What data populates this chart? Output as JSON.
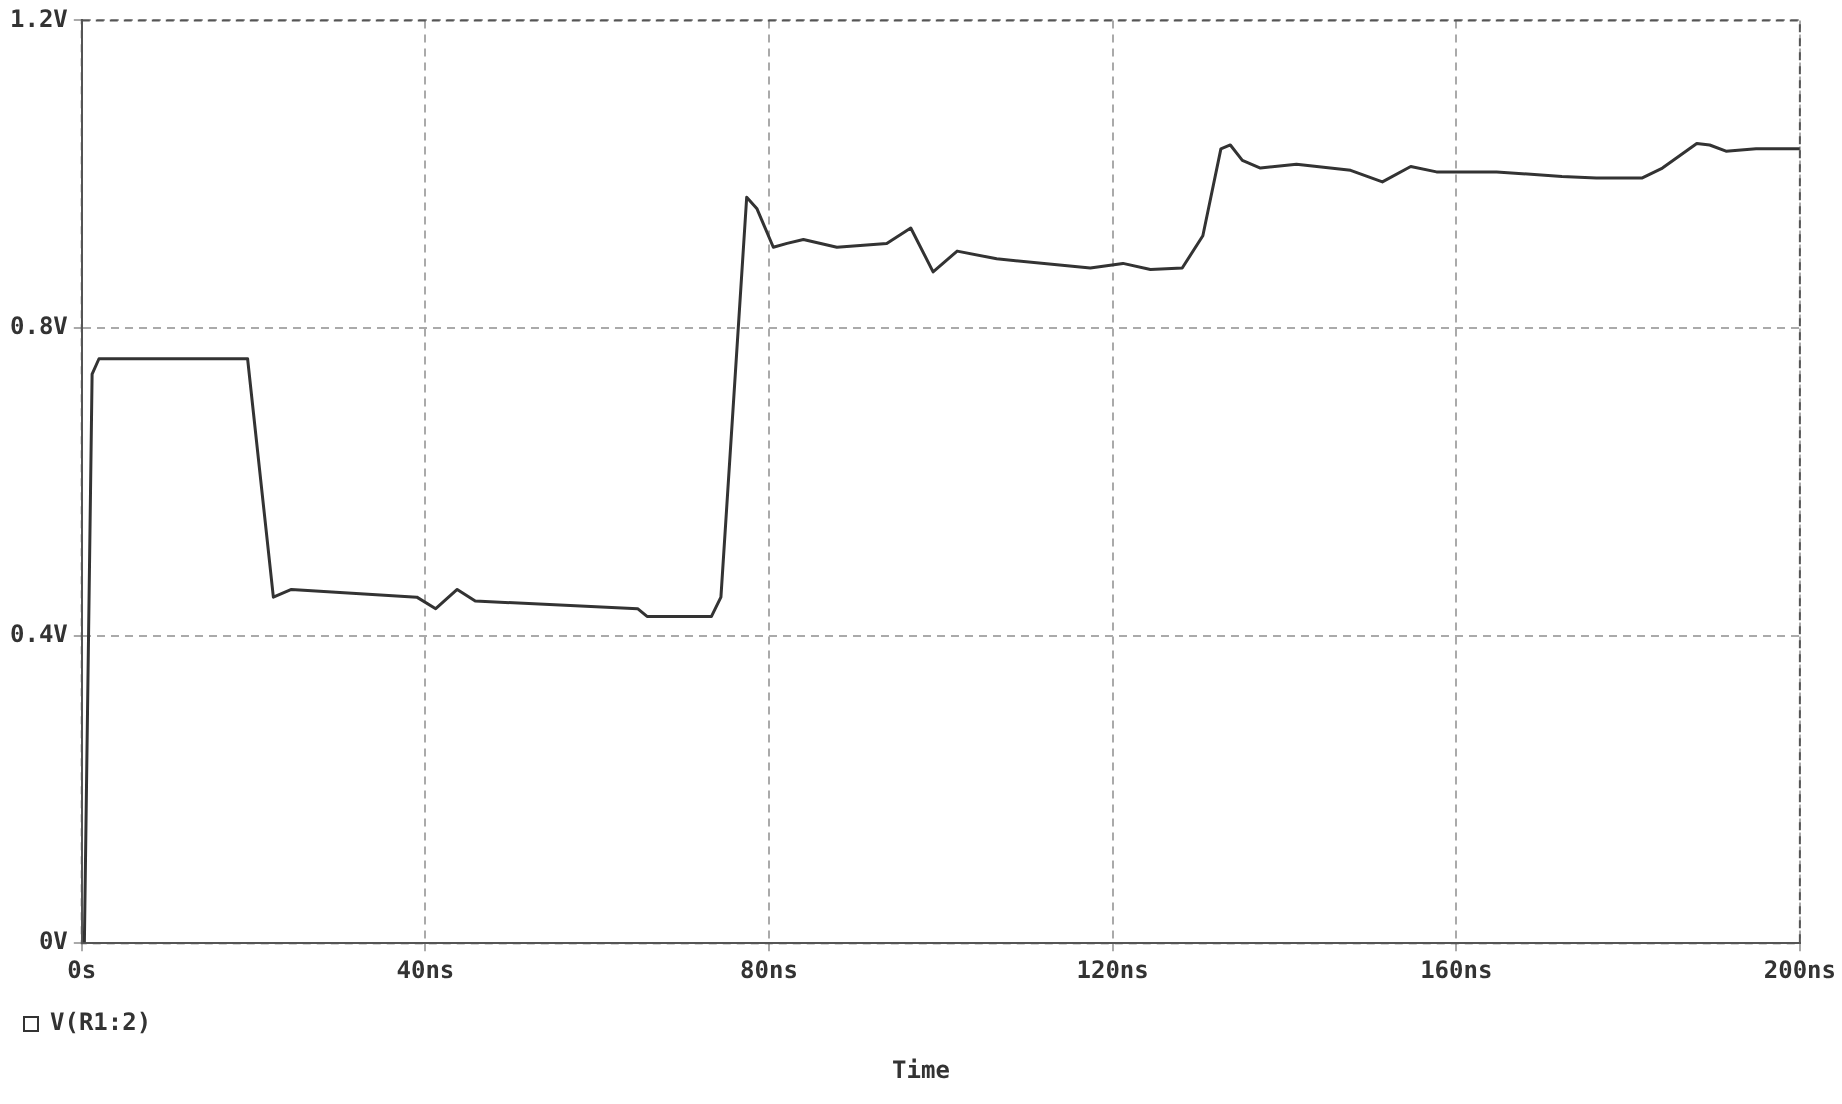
{
  "chart_data": {
    "type": "line",
    "xlabel": "Time",
    "x": [
      0,
      0.3,
      1.2,
      2,
      19.3,
      22.3,
      24.4,
      39,
      41.2,
      43.7,
      45.8,
      64.7,
      65.8,
      73.3,
      74.4,
      77.4,
      78.6,
      80.5,
      82.1,
      84,
      87.9,
      93.7,
      96.5,
      99.1,
      101.9,
      106.5,
      117.4,
      121.2,
      124.4,
      128.1,
      130.5,
      132.6,
      133.7,
      135.1,
      137.2,
      141.4,
      147.7,
      151.4,
      154.7,
      157.7,
      164.7,
      172.3,
      176.3,
      181.6,
      184,
      188,
      189.5,
      191.4,
      194.9,
      200
    ],
    "series": [
      {
        "name": "V(R1:2)",
        "color": "#333333",
        "values": [
          0,
          0,
          0.74,
          0.76,
          0.76,
          0.45,
          0.46,
          0.45,
          0.435,
          0.46,
          0.445,
          0.435,
          0.425,
          0.425,
          0.45,
          0.97,
          0.955,
          0.905,
          0.91,
          0.915,
          0.905,
          0.91,
          0.93,
          0.873,
          0.9,
          0.89,
          0.878,
          0.884,
          0.876,
          0.878,
          0.92,
          1.033,
          1.038,
          1.018,
          1.008,
          1.013,
          1.005,
          0.99,
          1.01,
          1.003,
          1.003,
          0.997,
          0.995,
          0.995,
          1.008,
          1.04,
          1.038,
          1.03,
          1.033,
          1.033
        ]
      }
    ],
    "xlim": [
      0,
      200
    ],
    "xticks": [
      {
        "value": 0,
        "label": "0s"
      },
      {
        "value": 40,
        "label": "40ns"
      },
      {
        "value": 80,
        "label": "80ns"
      },
      {
        "value": 120,
        "label": "120ns"
      },
      {
        "value": 160,
        "label": "160ns"
      },
      {
        "value": 200,
        "label": "200ns"
      }
    ],
    "ylim": [
      0,
      1.2
    ],
    "yticks": [
      {
        "value": 0,
        "label": "0V"
      },
      {
        "value": 0.4,
        "label": "0.4V"
      },
      {
        "value": 0.8,
        "label": "0.8V"
      },
      {
        "value": 1.2,
        "label": "1.2V"
      }
    ],
    "grid": true,
    "legend": "bottom left",
    "marker": "none",
    "line_style": "solid"
  }
}
